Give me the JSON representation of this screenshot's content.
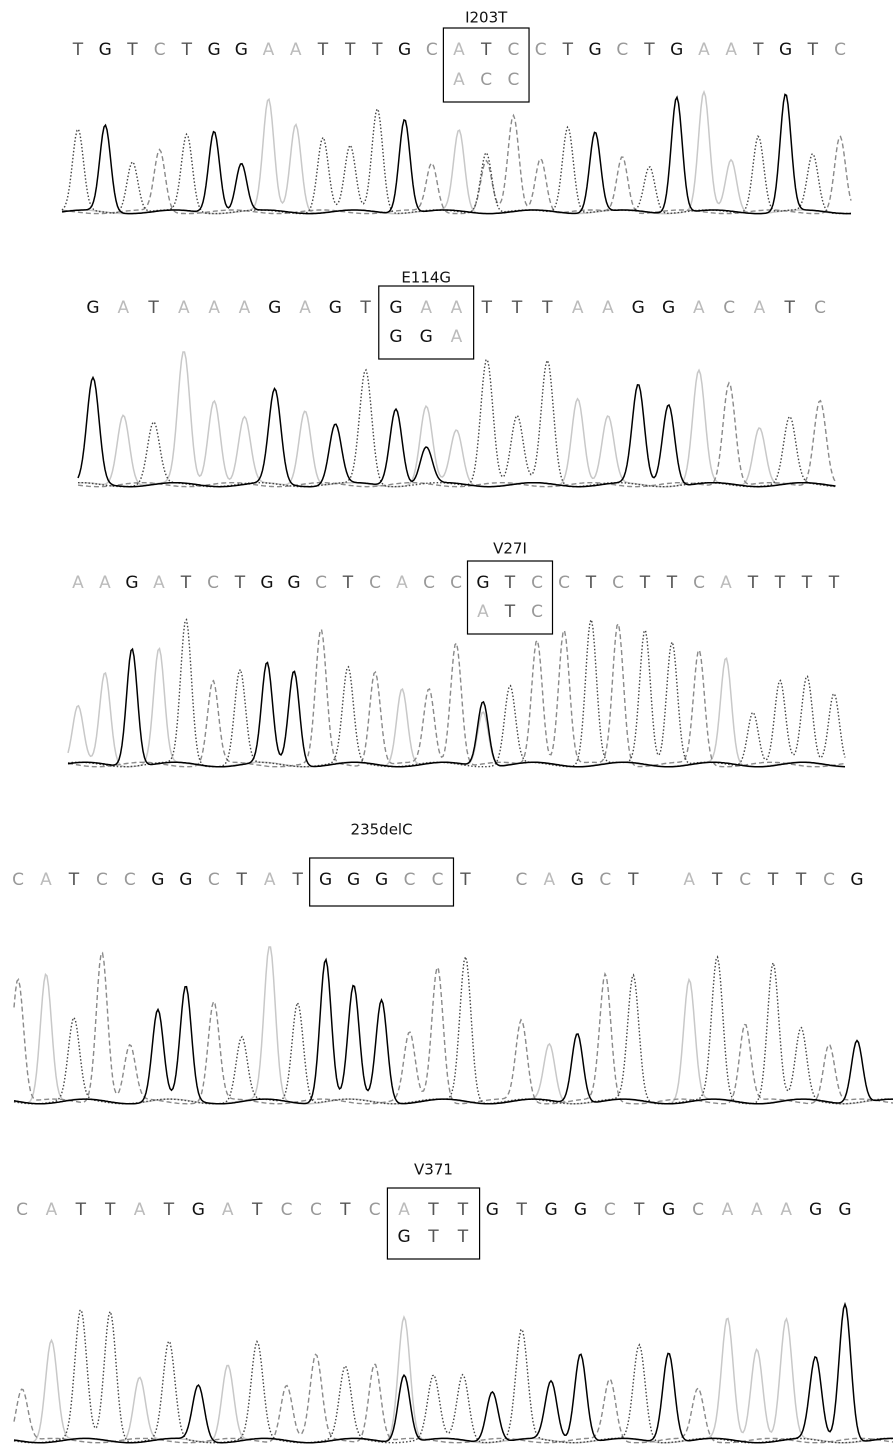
{
  "panels": [
    {
      "label": "I203T",
      "before": [
        "T",
        "G",
        "T",
        "C",
        "T",
        "G",
        "G",
        "A",
        "A",
        "T",
        "T",
        "T",
        "G",
        "C"
      ],
      "boxed": [
        "A",
        "T",
        "C"
      ],
      "mutant": [
        "A",
        "C",
        "C"
      ],
      "after": [
        "C",
        "T",
        "G",
        "C",
        "T",
        "G",
        "A",
        "A",
        "T",
        "G",
        "T",
        "C"
      ]
    },
    {
      "label": "E114G",
      "before": [
        "G",
        "A",
        "T",
        "A",
        "A",
        "A",
        "G",
        "A",
        "G",
        "T"
      ],
      "boxed": [
        "G",
        "A",
        "A"
      ],
      "mutant": [
        "G",
        "G",
        "A"
      ],
      "after": [
        "T",
        "T",
        "T",
        "A",
        "A",
        "G",
        "G",
        "A",
        "C",
        "A",
        "T",
        "C"
      ]
    },
    {
      "label": "V27I",
      "before": [
        "A",
        "A",
        "G",
        "A",
        "T",
        "C",
        "T",
        "G",
        "G",
        "C",
        "T",
        "C",
        "A",
        "C",
        "C"
      ],
      "boxed": [
        "G",
        "T",
        "C"
      ],
      "mutant": [
        "A",
        "T",
        "C"
      ],
      "after": [
        "C",
        "T",
        "C",
        "T",
        "T",
        "C",
        "A",
        "T",
        "T",
        "T",
        "T"
      ]
    },
    {
      "label": "235delC",
      "before": [
        "C",
        "A",
        "T",
        "C",
        "C",
        "G",
        "G",
        "C",
        "T",
        "A",
        "T"
      ],
      "boxed": [
        "G",
        "G",
        "G",
        "C",
        "C"
      ],
      "after": [
        "T",
        null,
        "C",
        "A",
        "G",
        "C",
        "T",
        null,
        "A",
        "T",
        "C",
        "T",
        "T",
        "C",
        "G"
      ]
    },
    {
      "label": "V371",
      "before": [
        "C",
        "A",
        "T",
        "T",
        "A",
        "T",
        "G",
        "A",
        "T",
        "C",
        "C",
        "T",
        "C"
      ],
      "boxed": [
        "A",
        "T",
        "T"
      ],
      "mutant": [
        "G",
        "T",
        "T"
      ],
      "after": [
        "G",
        "T",
        "G",
        "G",
        "C",
        "T",
        "G",
        "C",
        "A",
        "A",
        "A",
        "G",
        "G"
      ]
    }
  ]
}
